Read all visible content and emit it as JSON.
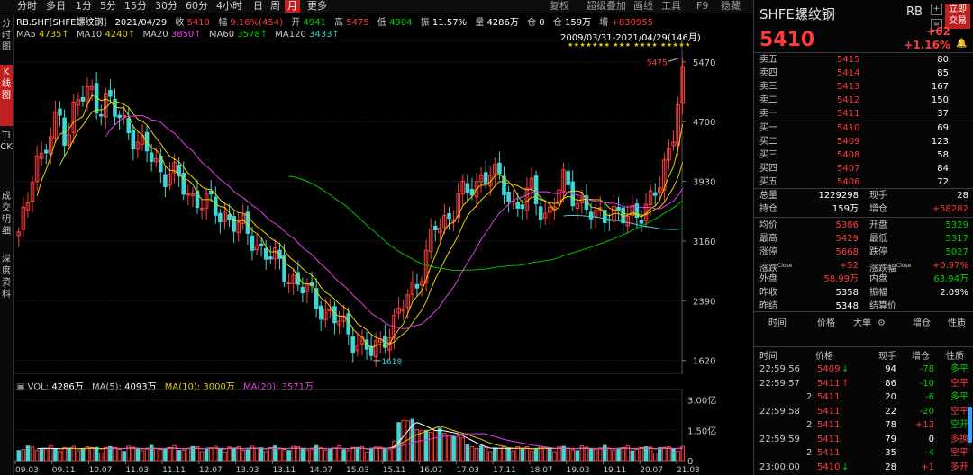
{
  "toolbar": {
    "periods": [
      "分时",
      "多日",
      "1分",
      "5分",
      "15分",
      "30分",
      "60分",
      "4小时",
      "日",
      "周",
      "月",
      "更多"
    ],
    "active_period": "月",
    "right": [
      "复权",
      "超级叠加",
      "画线",
      "工具",
      "F9",
      "隐藏"
    ]
  },
  "left_tabs": [
    {
      "label": "分时图",
      "active": false
    },
    {
      "label": "K线图",
      "active": true
    },
    {
      "label": "TICK",
      "active": false
    },
    {
      "label": "成交明细",
      "active": false
    },
    {
      "label": "深度资料",
      "active": false
    }
  ],
  "info_bar": {
    "symbol": "RB.SHF[SHFE螺纹钢]",
    "date": "2021/04/29",
    "close_label": "收",
    "close": "5410",
    "range_label": "幅",
    "range": "9.16%(454)",
    "open_label": "开",
    "open": "4941",
    "high_label": "高",
    "high": "5475",
    "low_label": "低",
    "low": "4904",
    "amp_label": "振",
    "amp": "11.57%",
    "vol_label": "量",
    "vol": "4286万",
    "chg_label": "仓",
    "chg": "0",
    "oi_label": "仓",
    "oi": "159万",
    "inc_label": "增",
    "inc": "+830955"
  },
  "ma_bar": {
    "ma5_label": "MA5",
    "ma5": "4735↑",
    "ma10_label": "MA10",
    "ma10": "4240↑",
    "ma20_label": "MA20",
    "ma20": "3850↑",
    "ma60_label": "MA60",
    "ma60": "3578↑",
    "ma120_label": "MA120",
    "ma120": "3433↑",
    "range_text": "2009/03/31-2021/04/29(146月)"
  },
  "vol_bar": {
    "vol_label": "VOL:",
    "vol": "4286万",
    "ma5_label": "MA(5):",
    "ma5": "4093万",
    "ma10_label": "MA(10):",
    "ma10": "3000万",
    "ma20_label": "MA(20):",
    "ma20": "3571万"
  },
  "chart_data": {
    "type": "candlestick",
    "price_ticks": [
      "5470",
      "4700",
      "3930",
      "3160",
      "2390",
      "1620"
    ],
    "price_range": [
      1500,
      5700
    ],
    "vol_ticks": [
      "3.00亿",
      "1.50亿",
      "0"
    ],
    "x_ticks": [
      "09.03",
      "09.11",
      "10.07",
      "11.03",
      "11.11",
      "12.07",
      "13.03",
      "13.11",
      "14.07",
      "15.03",
      "15.11",
      "16.07",
      "17.03",
      "17.11",
      "18.07",
      "19.03",
      "19.11",
      "20.07",
      "21.03"
    ],
    "high_marker": "5475",
    "low_marker": "1618",
    "monthly_close_path": [
      3200,
      3600,
      4300,
      4200,
      4500,
      4800,
      4500,
      4900,
      5000,
      5100,
      4900,
      5000,
      4800,
      4700,
      4600,
      4400,
      4300,
      4200,
      4000,
      4100,
      3900,
      3800,
      3700,
      3700,
      3600,
      3500,
      3500,
      3400,
      3300,
      3200,
      3100,
      3000,
      2900,
      2800,
      2700,
      2600,
      2500,
      2400,
      2300,
      2200,
      2100,
      2000,
      1900,
      1800,
      1700,
      1800,
      2000,
      2100,
      2300,
      2500,
      2700,
      3000,
      3300,
      3400,
      3500,
      3800,
      3700,
      3900,
      4000,
      4100,
      3900,
      3800,
      3600,
      3700,
      3800,
      3600,
      3500,
      3700,
      3900,
      3800,
      3700,
      3600,
      3400,
      3500,
      3600,
      3500,
      3400,
      3500,
      3600,
      3700,
      3800,
      4200,
      4700,
      5410
    ],
    "series": [
      {
        "name": "MA5",
        "color": "#e8d000"
      },
      {
        "name": "MA10",
        "color": "#e8d000"
      },
      {
        "name": "MA20",
        "color": "#e040e0"
      },
      {
        "name": "MA60",
        "color": "#00c000"
      },
      {
        "name": "MA120",
        "color": "#40d0d0"
      }
    ]
  },
  "quote": {
    "name": "SHFE螺纹钢",
    "code": "RB",
    "price": "5410",
    "change": "+62",
    "change_pct": "+1.16%",
    "buy_button": "立即交易",
    "asks": [
      {
        "label": "卖五",
        "price": "5415",
        "vol": "80"
      },
      {
        "label": "卖四",
        "price": "5414",
        "vol": "85"
      },
      {
        "label": "卖三",
        "price": "5413",
        "vol": "167"
      },
      {
        "label": "卖二",
        "price": "5412",
        "vol": "150"
      },
      {
        "label": "卖一",
        "price": "5411",
        "vol": "37"
      }
    ],
    "bids": [
      {
        "label": "买一",
        "price": "5410",
        "vol": "69"
      },
      {
        "label": "买二",
        "price": "5409",
        "vol": "123"
      },
      {
        "label": "买三",
        "price": "5408",
        "vol": "58"
      },
      {
        "label": "买四",
        "price": "5407",
        "vol": "84"
      },
      {
        "label": "买五",
        "price": "5406",
        "vol": "72"
      }
    ],
    "stats_left": [
      {
        "label": "总量",
        "value": "1229298",
        "color": "white"
      },
      {
        "label": "持仓",
        "value": "159万",
        "color": "white"
      },
      {
        "label": "均价",
        "value": "5386",
        "color": "red"
      },
      {
        "label": "最高",
        "value": "5429",
        "color": "red"
      },
      {
        "label": "涨停",
        "value": "5668",
        "color": "red"
      },
      {
        "label": "涨跌Close",
        "value": "+52",
        "color": "red"
      },
      {
        "label": "外盘",
        "value": "58.99万",
        "color": "red"
      },
      {
        "label": "昨收",
        "value": "5358",
        "color": "white"
      },
      {
        "label": "昨结",
        "value": "5348",
        "color": "white"
      }
    ],
    "stats_right": [
      {
        "label": "现手",
        "value": "28",
        "color": "white"
      },
      {
        "label": "增仓",
        "value": "+58282",
        "color": "red"
      },
      {
        "label": "开盘",
        "value": "5329",
        "color": "green"
      },
      {
        "label": "最低",
        "value": "5317",
        "color": "green"
      },
      {
        "label": "跌停",
        "value": "5027",
        "color": "green"
      },
      {
        "label": "涨跌幅Close",
        "value": "+0.97%",
        "color": "red"
      },
      {
        "label": "内盘",
        "value": "63.94万",
        "color": "green"
      },
      {
        "label": "振幅",
        "value": "2.09%",
        "color": "white"
      },
      {
        "label": "结算价",
        "value": "",
        "color": "white"
      }
    ],
    "big_order_header": [
      "时间",
      "价格",
      "大单",
      "增仓",
      "性质"
    ],
    "ticks_header": [
      "时间",
      "价格",
      "现手",
      "增仓",
      "性质"
    ],
    "ticks": [
      {
        "time": "22:59:56",
        "price": "5409",
        "arrow": "↓",
        "arrow_color": "green",
        "vol": "94",
        "inc": "-78",
        "nature": "多平",
        "nature_color": "green"
      },
      {
        "time": "22:59:57",
        "price": "5411",
        "arrow": "↑",
        "arrow_color": "red",
        "vol": "86",
        "inc": "-10",
        "nature": "空平",
        "nature_color": "red"
      },
      {
        "time": "2",
        "price": "5411",
        "arrow": "",
        "arrow_color": "red",
        "vol": "20",
        "inc": "-6",
        "nature": "多平",
        "nature_color": "green"
      },
      {
        "time": "22:59:58",
        "price": "5411",
        "arrow": "",
        "arrow_color": "red",
        "vol": "22",
        "inc": "-20",
        "nature": "空平",
        "nature_color": "red"
      },
      {
        "time": "2",
        "price": "5411",
        "arrow": "",
        "arrow_color": "red",
        "vol": "78",
        "inc": "+13",
        "nature": "空开",
        "nature_color": "green"
      },
      {
        "time": "22:59:59",
        "price": "5411",
        "arrow": "",
        "arrow_color": "red",
        "vol": "79",
        "inc": "0",
        "nature": "多换",
        "nature_color": "red"
      },
      {
        "time": "2",
        "price": "5411",
        "arrow": "",
        "arrow_color": "red",
        "vol": "35",
        "inc": "-4",
        "nature": "空平",
        "nature_color": "red"
      },
      {
        "time": "23:00:00",
        "price": "5410",
        "arrow": "↓",
        "arrow_color": "green",
        "vol": "28",
        "inc": "+1",
        "nature": "多开",
        "nature_color": "red"
      }
    ]
  }
}
